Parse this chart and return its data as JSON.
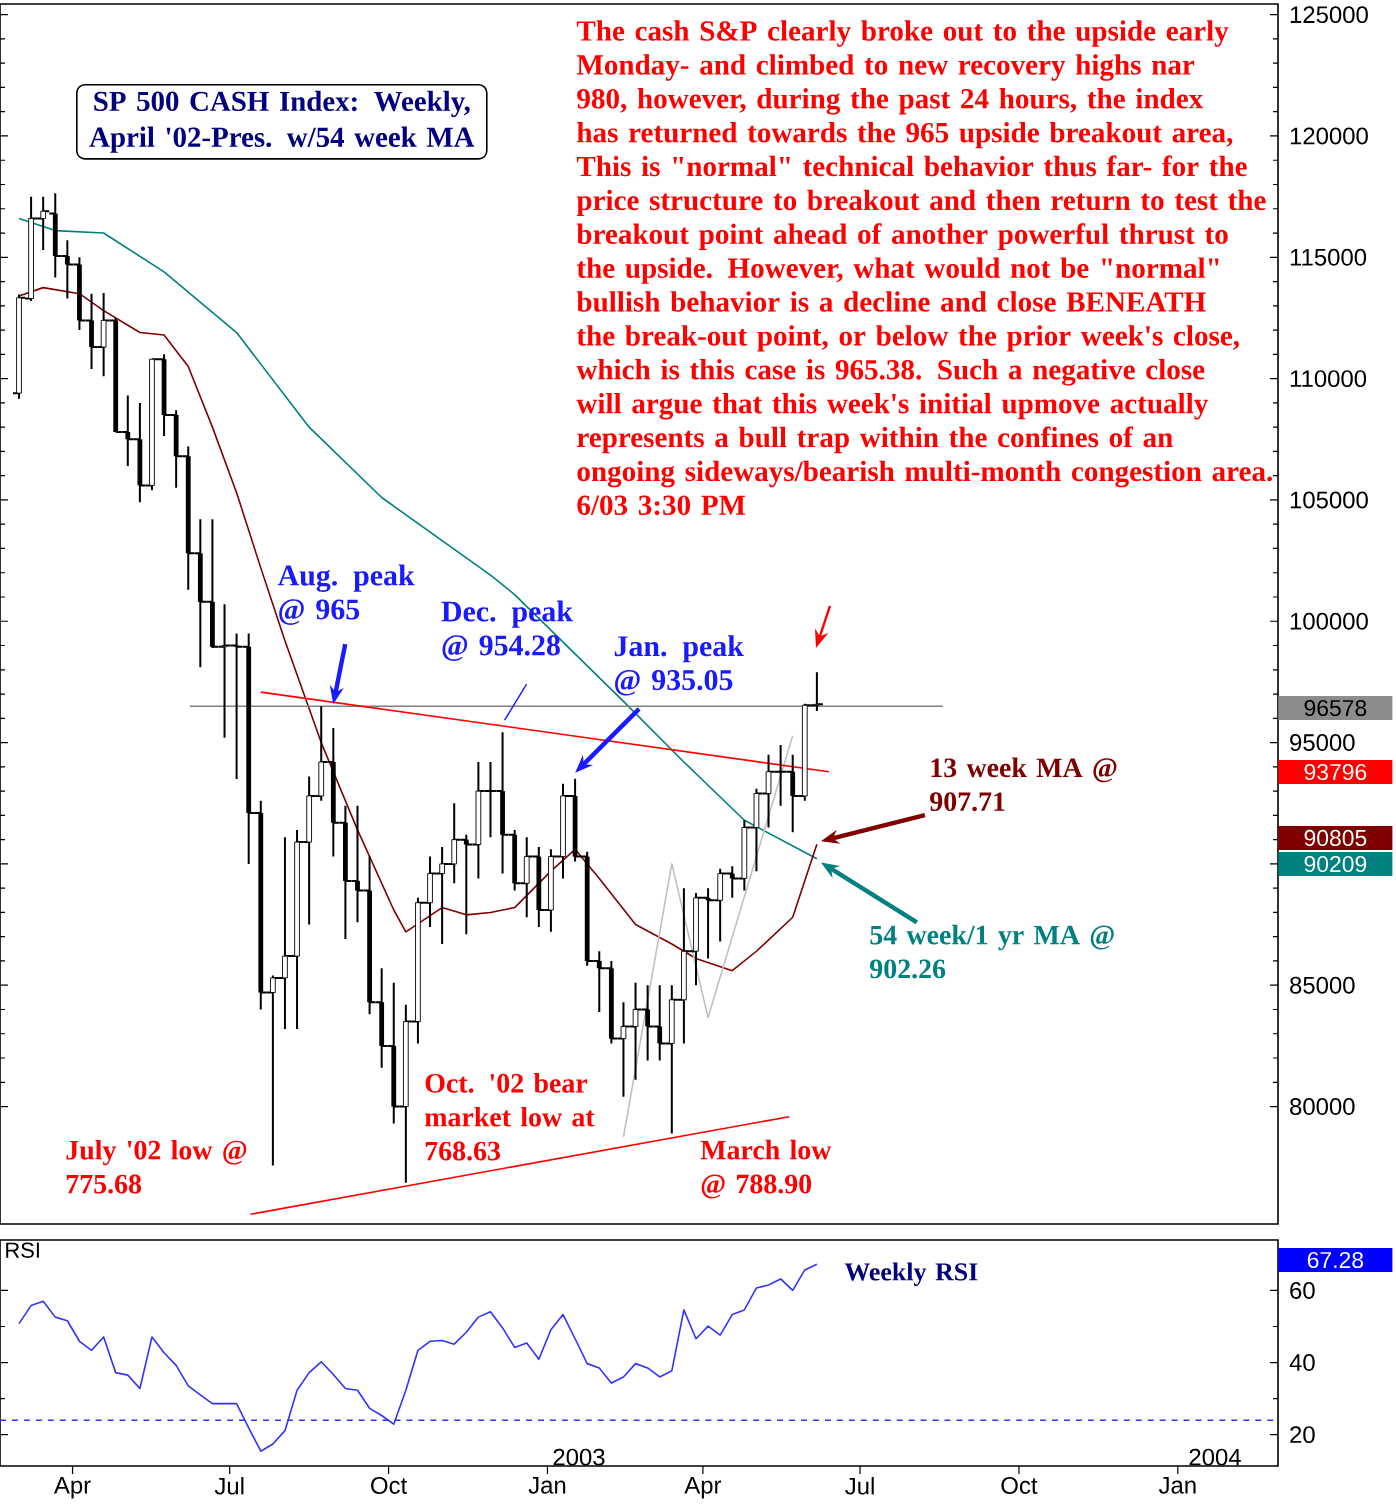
{
  "chart_data": [
    {
      "type": "candlestick",
      "title": "SP 500 CASH Index: Weekly, April '02-Pres. w/54 week MA",
      "color": "#000000",
      "x": [
        "2002-03-01",
        "2002-03-08",
        "2002-03-15",
        "2002-03-22",
        "2002-03-29",
        "2002-04-05",
        "2002-04-12",
        "2002-04-19",
        "2002-04-26",
        "2002-05-03",
        "2002-05-10",
        "2002-05-17",
        "2002-05-24",
        "2002-05-31",
        "2002-06-07",
        "2002-06-14",
        "2002-06-21",
        "2002-06-28",
        "2002-07-05",
        "2002-07-12",
        "2002-07-19",
        "2002-07-26",
        "2002-08-02",
        "2002-08-09",
        "2002-08-16",
        "2002-08-23",
        "2002-08-30",
        "2002-09-06",
        "2002-09-13",
        "2002-09-20",
        "2002-09-27",
        "2002-10-04",
        "2002-10-11",
        "2002-10-18",
        "2002-10-25",
        "2002-11-01",
        "2002-11-08",
        "2002-11-15",
        "2002-11-22",
        "2002-11-29",
        "2002-12-06",
        "2002-12-13",
        "2002-12-20",
        "2002-12-27",
        "2003-01-03",
        "2003-01-10",
        "2003-01-17",
        "2003-01-24",
        "2003-01-31",
        "2003-02-07",
        "2003-02-14",
        "2003-02-21",
        "2003-02-28",
        "2003-03-07",
        "2003-03-14",
        "2003-03-21",
        "2003-03-28",
        "2003-04-04",
        "2003-04-11",
        "2003-04-18",
        "2003-04-25",
        "2003-05-02",
        "2003-05-09",
        "2003-05-16",
        "2003-05-23",
        "2003-05-30",
        "2003-06-06"
      ],
      "ohlc": [
        [
          109400,
          113470,
          109170,
          113330
        ],
        [
          113300,
          117500,
          113200,
          116600
        ],
        [
          116600,
          117500,
          115300,
          116900
        ],
        [
          116800,
          117640,
          114170,
          115050
        ],
        [
          115050,
          115700,
          113300,
          114700
        ],
        [
          114700,
          115000,
          112000,
          112400
        ],
        [
          112400,
          113500,
          110400,
          111300
        ],
        [
          111300,
          113530,
          110100,
          112400
        ],
        [
          112400,
          112500,
          107800,
          107800
        ],
        [
          107800,
          109300,
          106400,
          107500
        ],
        [
          107500,
          109000,
          104900,
          105600
        ],
        [
          105600,
          110800,
          105400,
          110800
        ],
        [
          110800,
          111000,
          107640,
          108500
        ],
        [
          108500,
          108700,
          105500,
          106800
        ],
        [
          106800,
          107200,
          101300,
          102800
        ],
        [
          102800,
          104200,
          98100,
          100800
        ],
        [
          100800,
          104200,
          98900,
          98950
        ],
        [
          98950,
          100700,
          95200,
          99000
        ],
        [
          99000,
          99500,
          93500,
          98950
        ],
        [
          98950,
          99500,
          90000,
          92100
        ],
        [
          92100,
          92600,
          84000,
          84700
        ],
        [
          84700,
          85400,
          77568,
          85300
        ],
        [
          85300,
          91100,
          83200,
          86200
        ],
        [
          86200,
          91400,
          83200,
          90900
        ],
        [
          90900,
          93600,
          87500,
          92800
        ],
        [
          92800,
          96500,
          92600,
          94200
        ],
        [
          94200,
          95600,
          90300,
          91700
        ],
        [
          91700,
          92400,
          86900,
          89300
        ],
        [
          89300,
          92400,
          87600,
          88900
        ],
        [
          88900,
          90300,
          83800,
          84300
        ],
        [
          84300,
          85700,
          81600,
          82500
        ],
        [
          82500,
          85100,
          79300,
          80000
        ],
        [
          80000,
          84200,
          76863,
          83500
        ],
        [
          83500,
          88600,
          82600,
          88400
        ],
        [
          88400,
          90300,
          87400,
          89600
        ],
        [
          89600,
          90700,
          86700,
          90000
        ],
        [
          90000,
          92500,
          89200,
          91000
        ],
        [
          91000,
          91200,
          87100,
          90800
        ],
        [
          90800,
          94200,
          89400,
          93000
        ],
        [
          93000,
          94200,
          91100,
          93000
        ],
        [
          93000,
          95428,
          89600,
          91200
        ],
        [
          91200,
          91400,
          88900,
          89200
        ],
        [
          89200,
          91100,
          87800,
          90300
        ],
        [
          90300,
          90700,
          87400,
          88100
        ],
        [
          88100,
          90600,
          87200,
          90300
        ],
        [
          90300,
          93300,
          89400,
          92800
        ],
        [
          92800,
          93505,
          90100,
          90300
        ],
        [
          90300,
          90500,
          85800,
          86000
        ],
        [
          86000,
          86400,
          83900,
          85700
        ],
        [
          85700,
          86000,
          82600,
          82800
        ],
        [
          82800,
          84300,
          80400,
          83300
        ],
        [
          83300,
          85100,
          81100,
          84000
        ],
        [
          84000,
          85000,
          81900,
          83300
        ],
        [
          83300,
          85000,
          81900,
          82600
        ],
        [
          82600,
          85000,
          78890,
          84400
        ],
        [
          84400,
          89000,
          82600,
          86400
        ],
        [
          86400,
          88800,
          85000,
          88600
        ],
        [
          88600,
          89000,
          86100,
          88500
        ],
        [
          88500,
          89800,
          86800,
          89600
        ],
        [
          89600,
          89900,
          88600,
          89400
        ],
        [
          89400,
          91800,
          88900,
          91500
        ],
        [
          91500,
          93100,
          89700,
          92900
        ],
        [
          92900,
          94500,
          91500,
          93800
        ],
        [
          93800,
          94900,
          92400,
          93800
        ],
        [
          93800,
          94500,
          91300,
          92800
        ],
        [
          92800,
          96600,
          92600,
          96538
        ],
        [
          96538,
          97900,
          96300,
          96578
        ]
      ],
      "series": [
        {
          "type": "line",
          "color": "#008080",
          "x": [
            "2002-03-01",
            "2002-03-22",
            "2002-04-19",
            "2002-05-24",
            "2002-07-05",
            "2002-08-16",
            "2002-09-27",
            "2002-11-29",
            "2002-12-13",
            "2003-02-14",
            "2003-03-21",
            "2003-04-25",
            "2003-06-06"
          ],
          "values": [
            116600,
            116100,
            116000,
            114400,
            111900,
            108000,
            105100,
            101900,
            101100,
            96700,
            94200,
            91800,
            90209
          ]
        },
        {
          "type": "line",
          "color": "#800000",
          "x": [
            "2002-03-01",
            "2002-03-15",
            "2002-04-05",
            "2002-04-19",
            "2002-05-10",
            "2002-05-24",
            "2002-06-07",
            "2002-06-21",
            "2002-07-05",
            "2002-07-19",
            "2002-08-02",
            "2002-08-23",
            "2002-09-13",
            "2002-10-04",
            "2002-10-11",
            "2002-11-01",
            "2002-11-15",
            "2002-11-29",
            "2002-12-13",
            "2003-01-03",
            "2003-01-17",
            "2003-01-31",
            "2003-02-21",
            "2003-03-14",
            "2003-03-28",
            "2003-04-18",
            "2003-05-02",
            "2003-05-23",
            "2003-06-06"
          ],
          "values": [
            113400,
            113750,
            113500,
            112800,
            111900,
            111800,
            110500,
            108000,
            105300,
            102200,
            99200,
            95000,
            91400,
            88100,
            87200,
            88200,
            87900,
            88000,
            88200,
            89700,
            90600,
            89400,
            87500,
            86700,
            86100,
            85600,
            86400,
            87800,
            90805
          ]
        },
        {
          "type": "line",
          "color": "#808080",
          "x": [
            "2002-06-08",
            "2003-08-18"
          ],
          "values": [
            96500,
            96500
          ]
        },
        {
          "type": "line",
          "color": "#c0c0c0",
          "x": [
            "2003-02-14",
            "2003-03-14",
            "2003-04-04",
            "2003-05-23"
          ],
          "values": [
            78750,
            90000,
            83670,
            95280
          ]
        },
        {
          "type": "line",
          "color": "#ff0000",
          "x": [
            "2002-07-19",
            "2003-06-13"
          ],
          "values": [
            97080,
            93796
          ]
        },
        {
          "type": "line",
          "color": "#ff0000",
          "x": [
            "2002-07-13",
            "2003-05-21"
          ],
          "values": [
            75560,
            79580
          ]
        }
      ],
      "xlim": [
        "2002-02-18",
        "2004-02-28"
      ],
      "ylim": [
        75160,
        125440
      ],
      "yticks": [
        80000,
        85000,
        {
          "value": 90000,
          "label": null
        },
        95000,
        100000,
        105000,
        110000,
        115000,
        120000,
        125000
      ],
      "tick_labels": "y",
      "annotations": [
        "The cash S&P clearly broke out to the upside early Monday- and climbed to new recovery highs nar 980, however, during the past 24 hours, the index has returned towards the 965 upside breakout area, This is \"normal\" technical behavior thus far- for the price structure to breakout and then return to test the breakout point ahead of another powerful thrust to the upside. However, what would not be \"normal\" bullish behavior is a decline and close BENEATH the break-out point, or below the prior week's close, which is this case is 965.38. Such a negative close will argue that this week's initial upmove actually represents a bull trap within the confines of an ongoing sideways/bearish multi-month congestion area. 6/03 3:30 PM",
        {
          "text": "Aug. peak @ 965",
          "x": "2002-08-23",
          "y": 96500
        },
        {
          "text": "Dec. peak @ 954.28",
          "x": "2002-12-06",
          "y": 95428
        },
        {
          "text": "Jan. peak @ 935.05",
          "x": "2003-01-17",
          "y": 93505
        },
        {
          "text": "July '02 low @ 775.68",
          "x": "2002-07-26",
          "y": 77568
        },
        {
          "text": "Oct. '02 bear market low at 768.63",
          "x": "2002-10-11",
          "y": 76863
        },
        {
          "text": "March low @ 788.90",
          "x": "2003-03-14",
          "y": 78890
        },
        {
          "text": "13 week MA @ 907.71",
          "x": "2003-06-06",
          "y": 90771
        },
        {
          "text": "54 week/1 yr MA @ 902.26",
          "x": "2003-06-06",
          "y": 90226
        },
        "96578",
        "93796",
        "90805",
        "90209"
      ]
    },
    {
      "type": "line",
      "title": "RSI",
      "color": "#3333ff",
      "x": [
        "2002-03-01",
        "2002-03-08",
        "2002-03-15",
        "2002-03-22",
        "2002-03-29",
        "2002-04-05",
        "2002-04-12",
        "2002-04-19",
        "2002-04-26",
        "2002-05-03",
        "2002-05-10",
        "2002-05-17",
        "2002-05-24",
        "2002-05-31",
        "2002-06-07",
        "2002-06-14",
        "2002-06-21",
        "2002-06-28",
        "2002-07-05",
        "2002-07-12",
        "2002-07-19",
        "2002-07-26",
        "2002-08-02",
        "2002-08-09",
        "2002-08-16",
        "2002-08-23",
        "2002-08-30",
        "2002-09-06",
        "2002-09-13",
        "2002-09-20",
        "2002-09-27",
        "2002-10-04",
        "2002-10-11",
        "2002-10-18",
        "2002-10-25",
        "2002-11-01",
        "2002-11-08",
        "2002-11-15",
        "2002-11-22",
        "2002-11-29",
        "2002-12-06",
        "2002-12-13",
        "2002-12-20",
        "2002-12-27",
        "2003-01-03",
        "2003-01-10",
        "2003-01-17",
        "2003-01-24",
        "2003-01-31",
        "2003-02-07",
        "2003-02-14",
        "2003-02-21",
        "2003-02-28",
        "2003-03-07",
        "2003-03-14",
        "2003-03-21",
        "2003-03-28",
        "2003-04-04",
        "2003-04-11",
        "2003-04-18",
        "2003-04-25",
        "2003-05-02",
        "2003-05-09",
        "2003-05-16",
        "2003-05-23",
        "2003-05-30",
        "2003-06-06"
      ],
      "values": [
        50.8,
        55.8,
        57,
        52.6,
        51.6,
        45.9,
        43.4,
        47.1,
        37.2,
        36.5,
        32.8,
        47.1,
        42.7,
        39.2,
        33.5,
        31,
        28.6,
        28.6,
        28.6,
        21.9,
        15.4,
        17.4,
        21.1,
        32.3,
        37.2,
        40.2,
        36.7,
        32.8,
        32.3,
        27.3,
        25.3,
        22.9,
        32.3,
        43.4,
        45.9,
        46.1,
        45.1,
        48.4,
        52.6,
        54.1,
        49.6,
        44.2,
        45.4,
        40.9,
        49.1,
        53.3,
        46.6,
        39.7,
        38.5,
        34.3,
        36,
        39.7,
        38.5,
        36,
        37.7,
        54.6,
        46.6,
        50.1,
        47.6,
        53.3,
        54.6,
        60.7,
        61.5,
        63.2,
        60,
        65.7,
        67.28
      ],
      "xlim": [
        "2002-02-18",
        "2004-02-28"
      ],
      "ylim": [
        11.3,
        74
      ],
      "xticks": [
        {
          "value": "2002-04-01",
          "label": "Apr"
        },
        {
          "value": "2002-07-01",
          "label": "Jul"
        },
        {
          "value": "2002-10-01",
          "label": "Oct"
        },
        {
          "value": "2003-01-01",
          "label": "Jan"
        },
        {
          "value": "2003-04-01",
          "label": "Apr"
        },
        {
          "value": "2003-07-01",
          "label": "Jul"
        },
        {
          "value": "2003-10-01",
          "label": "Oct"
        },
        {
          "value": "2004-01-01",
          "label": "Jan"
        }
      ],
      "yticks": [
        20,
        40,
        60
      ],
      "ref_lines": [
        {
          "axis": "y",
          "value": 24,
          "color": "#3333ff",
          "line_style": "dashed"
        }
      ],
      "annotations": [
        "Weekly RSI",
        "2003",
        "2004",
        "67.28"
      ]
    }
  ]
}
